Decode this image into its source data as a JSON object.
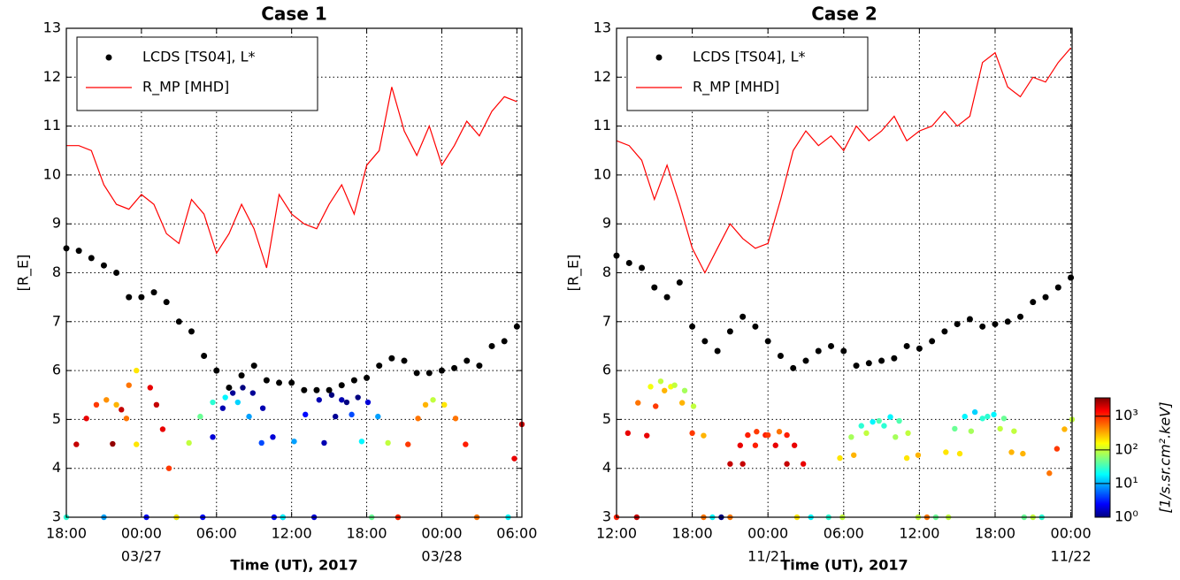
{
  "chart_data": [
    {
      "type": "combo",
      "title": "Case 1",
      "x_label": "Time (UT), 2017",
      "y_label": "[R_E]",
      "xlim": [
        0,
        36.4
      ],
      "ylim": [
        3,
        13
      ],
      "yticks": [
        3,
        4,
        5,
        6,
        7,
        8,
        9,
        10,
        11,
        12,
        13
      ],
      "grid": true,
      "legend": "upper left",
      "xticks": [
        {
          "value": 0,
          "label": "18:00"
        },
        {
          "value": 6,
          "label": "00:00"
        },
        {
          "value": 12,
          "label": "06:00"
        },
        {
          "value": 18,
          "label": "12:00"
        },
        {
          "value": 24,
          "label": "18:00"
        },
        {
          "value": 30,
          "label": "00:00"
        },
        {
          "value": 36,
          "label": "06:00"
        }
      ],
      "date_labels": [
        {
          "value": 6,
          "label": "03/27"
        },
        {
          "value": 30,
          "label": "03/28"
        }
      ],
      "series": [
        {
          "name": "LCDS [TS04], L*",
          "color": "#000000",
          "kind": "scatter",
          "x": [
            0,
            1,
            2,
            3,
            4,
            5,
            6,
            7,
            8,
            9,
            10,
            11,
            12,
            13,
            14,
            15,
            16,
            17,
            18,
            19,
            20,
            21,
            22,
            23,
            24,
            25,
            26,
            27,
            28,
            29,
            30,
            31,
            32,
            33,
            34,
            35,
            36
          ],
          "values": [
            8.5,
            8.45,
            8.3,
            8.15,
            8.0,
            7.5,
            7.5,
            7.6,
            7.4,
            7.0,
            6.8,
            6.3,
            6.0,
            5.65,
            5.9,
            6.1,
            5.8,
            5.75,
            5.75,
            5.6,
            5.6,
            5.6,
            5.7,
            5.8,
            5.85,
            6.1,
            6.25,
            6.2,
            5.95,
            5.95,
            6.0,
            6.05,
            6.2,
            6.1,
            6.5,
            6.6,
            6.9
          ]
        },
        {
          "name": "R_MP [MHD]",
          "color": "#ff0000",
          "kind": "line",
          "x": [
            0,
            1,
            2,
            3,
            4,
            5,
            6,
            7,
            8,
            9,
            10,
            11,
            12,
            13,
            14,
            15,
            16,
            17,
            18,
            19,
            20,
            21,
            22,
            23,
            24,
            25,
            26,
            27,
            28,
            29,
            30,
            31,
            32,
            33,
            34,
            35,
            36
          ],
          "values": [
            10.6,
            10.6,
            10.5,
            9.8,
            9.4,
            9.3,
            9.6,
            9.4,
            8.8,
            8.6,
            9.5,
            9.2,
            8.4,
            8.8,
            9.4,
            8.9,
            8.1,
            9.6,
            9.2,
            9.0,
            8.9,
            9.4,
            9.8,
            9.2,
            10.2,
            10.5,
            11.8,
            10.9,
            10.4,
            11.0,
            10.2,
            10.6,
            11.1,
            10.8,
            11.3,
            11.6,
            11.5
          ]
        }
      ],
      "orbits": [
        {
          "x": [
            0,
            0.8,
            1.6,
            2.4,
            3.2,
            4.0,
            4.8,
            5.6,
            6.4
          ],
          "values": [
            3,
            4.49,
            5.02,
            5.3,
            5.4,
            5.3,
            5.02,
            4.49,
            3
          ],
          "flux": [
            30,
            2000,
            1500,
            800,
            400,
            300,
            500,
            200,
            3
          ]
        },
        {
          "x": [
            3.0,
            3.7,
            4.4,
            5.0,
            5.6
          ],
          "values": [
            3,
            4.5,
            5.2,
            5.7,
            6.0
          ],
          "flux": [
            10,
            3000,
            2000,
            500,
            200
          ]
        },
        {
          "x": [
            6.7,
            7.2,
            7.7,
            8.2,
            8.8
          ],
          "values": [
            5.65,
            5.3,
            4.8,
            4.0,
            3.0
          ],
          "flux": [
            1500,
            2000,
            1500,
            800,
            20
          ]
        },
        {
          "x": [
            8.8,
            9.8,
            10.7,
            11.7,
            12.7,
            13.7,
            14.6,
            15.6,
            16.6
          ],
          "values": [
            3,
            4.52,
            5.06,
            5.35,
            5.45,
            5.35,
            5.06,
            4.52,
            3
          ],
          "flux": [
            200,
            100,
            50,
            30,
            20,
            15,
            10,
            5,
            3
          ]
        },
        {
          "x": [
            10.9,
            11.7,
            12.5,
            13.3,
            14.1,
            14.9,
            15.7,
            16.5,
            17.3
          ],
          "values": [
            3,
            4.64,
            5.23,
            5.54,
            5.65,
            5.54,
            5.23,
            4.64,
            3
          ],
          "flux": [
            3,
            2,
            1.5,
            1.2,
            1,
            1.2,
            1.5,
            2,
            3
          ]
        },
        {
          "x": [
            17.3,
            18.2,
            19.1,
            20.2,
            21.2,
            22.0,
            22.8,
            23.6,
            24.4
          ],
          "values": [
            3,
            4.55,
            5.1,
            5.4,
            5.5,
            5.4,
            5.1,
            4.55,
            3
          ],
          "flux": [
            20,
            10,
            3,
            1.5,
            1,
            1.5,
            5,
            20,
            50
          ]
        },
        {
          "x": [
            19.8,
            20.6,
            21.5,
            22.4,
            23.3,
            24.1,
            24.9,
            25.7,
            26.5
          ],
          "values": [
            3,
            4.52,
            5.06,
            5.35,
            5.45,
            5.35,
            5.06,
            4.52,
            3
          ],
          "flux": [
            2,
            1.5,
            1.2,
            1,
            1,
            2,
            10,
            100,
            300
          ]
        },
        {
          "x": [
            26.5,
            27.3,
            28.1,
            28.7,
            29.3,
            30.2,
            31.1,
            31.9,
            32.8
          ],
          "values": [
            3,
            4.49,
            5.02,
            5.3,
            5.4,
            5.3,
            5.02,
            4.49,
            3
          ],
          "flux": [
            1000,
            800,
            500,
            300,
            100,
            200,
            500,
            1000,
            500
          ]
        },
        {
          "x": [
            35.3,
            35.8,
            36.4
          ],
          "values": [
            3,
            4.2,
            4.9
          ],
          "flux": [
            20,
            1500,
            2000
          ]
        }
      ]
    },
    {
      "type": "combo",
      "title": "Case 2",
      "x_label": "Time (UT), 2017",
      "y_label": "[R_E]",
      "xlim": [
        0,
        36.1
      ],
      "ylim": [
        3,
        13
      ],
      "yticks": [
        3,
        4,
        5,
        6,
        7,
        8,
        9,
        10,
        11,
        12,
        13
      ],
      "grid": true,
      "legend": "upper left",
      "xticks": [
        {
          "value": 0,
          "label": "12:00"
        },
        {
          "value": 6,
          "label": "18:00"
        },
        {
          "value": 12,
          "label": "00:00"
        },
        {
          "value": 18,
          "label": "06:00"
        },
        {
          "value": 24,
          "label": "12:00"
        },
        {
          "value": 30,
          "label": "18:00"
        },
        {
          "value": 36,
          "label": "00:00"
        }
      ],
      "date_labels": [
        {
          "value": 12,
          "label": "11/21"
        },
        {
          "value": 36,
          "label": "11/22"
        }
      ],
      "series": [
        {
          "name": "LCDS [TS04], L*",
          "color": "#000000",
          "kind": "scatter",
          "x": [
            0,
            1,
            2,
            3,
            4,
            5,
            6,
            7,
            8,
            9,
            10,
            11,
            12,
            13,
            14,
            15,
            16,
            17,
            18,
            19,
            20,
            21,
            22,
            23,
            24,
            25,
            26,
            27,
            28,
            29,
            30,
            31,
            32,
            33,
            34,
            35,
            36
          ],
          "values": [
            8.35,
            8.2,
            8.1,
            7.7,
            7.5,
            7.8,
            6.9,
            6.6,
            6.4,
            6.8,
            7.1,
            6.9,
            6.6,
            6.3,
            6.05,
            6.2,
            6.4,
            6.5,
            6.4,
            6.1,
            6.15,
            6.2,
            6.25,
            6.5,
            6.45,
            6.6,
            6.8,
            6.95,
            7.05,
            6.9,
            6.95,
            7.0,
            7.1,
            7.4,
            7.5,
            7.7,
            7.9
          ]
        },
        {
          "name": "R_MP [MHD]",
          "color": "#ff0000",
          "kind": "line",
          "x": [
            0,
            1,
            2,
            3,
            4,
            5,
            6,
            7,
            8,
            9,
            10,
            11,
            12,
            13,
            14,
            15,
            16,
            17,
            18,
            19,
            20,
            21,
            22,
            23,
            24,
            25,
            26,
            27,
            28,
            29,
            30,
            31,
            32,
            33,
            34,
            35,
            36
          ],
          "values": [
            10.7,
            10.6,
            10.3,
            9.5,
            10.2,
            9.4,
            8.5,
            8.0,
            8.5,
            9.0,
            8.7,
            8.5,
            8.6,
            9.5,
            10.5,
            10.9,
            10.6,
            10.8,
            10.5,
            11.0,
            10.7,
            10.9,
            11.2,
            10.7,
            10.9,
            11.0,
            11.3,
            11.0,
            11.2,
            12.3,
            12.5,
            11.8,
            11.6,
            12.0,
            11.9,
            12.3,
            12.6
          ]
        }
      ],
      "orbits": [
        {
          "x": [
            0,
            0.9,
            1.7,
            2.7,
            3.5,
            4.3,
            5.2,
            6.0,
            6.9
          ],
          "values": [
            3,
            4.72,
            5.34,
            5.67,
            5.78,
            5.67,
            5.34,
            4.72,
            3
          ],
          "flux": [
            1000,
            1500,
            500,
            150,
            100,
            150,
            300,
            800,
            500
          ]
        },
        {
          "x": [
            1.6,
            2.4,
            3.1,
            3.8,
            4.6,
            5.4,
            6.1,
            6.9,
            7.6
          ],
          "values": [
            3,
            4.67,
            5.27,
            5.59,
            5.7,
            5.59,
            5.27,
            4.67,
            3
          ],
          "flux": [
            2000,
            1500,
            800,
            300,
            100,
            80,
            100,
            300,
            20
          ]
        },
        {
          "x": [
            8.3,
            9.0,
            9.8,
            10.4,
            11.1,
            11.8,
            12.6,
            13.5,
            14.3
          ],
          "values": [
            3,
            4.09,
            4.47,
            4.68,
            4.75,
            4.68,
            4.47,
            4.09,
            3
          ],
          "flux": [
            1,
            2000,
            1500,
            1000,
            800,
            1000,
            1500,
            2000,
            200
          ]
        },
        {
          "x": [
            9.0,
            10.0,
            11.0,
            12.0,
            12.9,
            13.5,
            14.1,
            14.8,
            15.4
          ],
          "values": [
            3,
            4.09,
            4.47,
            4.68,
            4.75,
            4.68,
            4.47,
            4.09,
            3
          ],
          "flux": [
            500,
            2000,
            1000,
            800,
            500,
            1000,
            1500,
            1500,
            20
          ]
        },
        {
          "x": [
            16.8,
            17.7,
            18.6,
            19.4,
            20.3,
            21.2,
            22.1,
            23.0,
            23.9
          ],
          "values": [
            3,
            4.21,
            4.64,
            4.87,
            4.95,
            4.87,
            4.64,
            4.21,
            3
          ],
          "flux": [
            30,
            200,
            80,
            30,
            20,
            30,
            80,
            200,
            100
          ]
        },
        {
          "x": [
            17.9,
            18.8,
            19.8,
            20.8,
            21.7,
            22.4,
            23.1,
            23.9,
            24.6
          ],
          "values": [
            3,
            4.27,
            4.72,
            4.97,
            5.05,
            4.97,
            4.72,
            4.27,
            3
          ],
          "flux": [
            100,
            300,
            100,
            40,
            20,
            40,
            100,
            300,
            500
          ]
        },
        {
          "x": [
            25.3,
            26.1,
            26.8,
            27.6,
            28.4,
            29.4,
            30.4,
            31.3,
            32.3
          ],
          "values": [
            3,
            4.33,
            4.81,
            5.06,
            5.15,
            5.06,
            4.81,
            4.33,
            3
          ],
          "flux": [
            50,
            200,
            50,
            20,
            15,
            30,
            100,
            300,
            50
          ]
        },
        {
          "x": [
            26.3,
            27.2,
            28.1,
            29.0,
            29.9,
            30.7,
            31.5,
            32.2,
            33.0
          ],
          "values": [
            3,
            4.3,
            4.76,
            5.02,
            5.1,
            5.02,
            4.76,
            4.3,
            3
          ],
          "flux": [
            100,
            200,
            80,
            30,
            20,
            50,
            100,
            300,
            100
          ]
        },
        {
          "x": [
            33.7,
            34.3,
            34.9,
            35.5,
            36.1
          ],
          "values": [
            3,
            3.9,
            4.4,
            4.8,
            5.0
          ],
          "flux": [
            30,
            500,
            800,
            300,
            100
          ]
        }
      ],
      "colorbar": {
        "label": "[1/s.sr.cm².keV]",
        "scale": "log",
        "colormap": "jet",
        "lim": [
          1,
          3500
        ],
        "ticks": [
          {
            "value": 1,
            "label": "10⁰"
          },
          {
            "value": 10,
            "label": "10¹"
          },
          {
            "value": 100,
            "label": "10²"
          },
          {
            "value": 1000,
            "label": "10³"
          }
        ]
      }
    }
  ]
}
